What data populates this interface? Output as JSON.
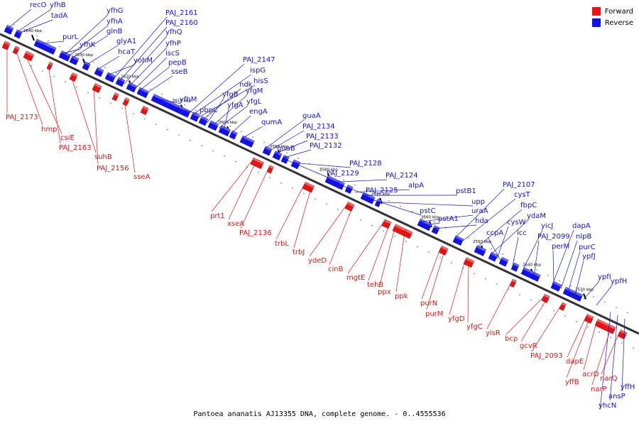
{
  "caption": "Pantoea ananatis AJ13355 DNA, complete genome. - 0..4555536",
  "legend": [
    {
      "label": "Forward",
      "color": "#ee1111"
    },
    {
      "label": "Reverse",
      "color": "#1111ee"
    }
  ],
  "colors": {
    "forward": "#ee1111",
    "reverse": "#1111ee",
    "backbone": "#333333"
  },
  "ticks": [
    "2640 kbp",
    "2630 kbp",
    "2620 kbp",
    "2610 kbp",
    "2600 kbp",
    "2590 kbp",
    "2580 kbp",
    "2570 kbp",
    "2560 kbp",
    "2550 kbp",
    "2540 kbp",
    "2530 kbp"
  ],
  "reverse_genes": [
    "recO",
    "yfhB",
    "tadA",
    "purL",
    "yfhG",
    "yfhA",
    "glnB",
    "yfhK",
    "glyA1",
    "hcaT",
    "yohM",
    "PAJ_2161",
    "PAJ_2160",
    "yfhQ",
    "yfhP",
    "iscS",
    "pepB",
    "sseB",
    "yfhM",
    "pbpC",
    "PAJ_2147",
    "ispG",
    "hisS",
    "ndk",
    "yfgB",
    "yfgM",
    "yfgL",
    "yfgA",
    "engA",
    "qumA",
    "guaA",
    "PAJ_2134",
    "PAJ_2133",
    "PAJ_2132",
    "guaB",
    "PAJ_2128",
    "PAJ_2129",
    "PAJ_2124",
    "PAJ_2125",
    "alpA",
    "pstB1",
    "upp",
    "pstC",
    "uraA",
    "pstA1",
    "hda",
    "PAJ_2107",
    "cysT",
    "fbpC",
    "ydaM",
    "cysW",
    "ccpA",
    "icc",
    "yicJ",
    "PAJ_2099",
    "dapA",
    "nlpB",
    "purC",
    "perM",
    "ypfJ",
    "ypfI",
    "ypfH",
    "yffH",
    "ansP",
    "yhcN"
  ],
  "forward_genes": [
    "PAJ_2173",
    "hmp",
    "csiE",
    "PAJ_2163",
    "suhB",
    "PAJ_2156",
    "sseA",
    "prt1",
    "xseA",
    "PAJ_2136",
    "trbL",
    "trbJ",
    "ydeD",
    "cinB",
    "mgtE",
    "tehB",
    "ppx",
    "ppk",
    "purN",
    "purM",
    "yfgD",
    "yfgC",
    "yisR",
    "bcp",
    "gcvR",
    "PAJ_2093",
    "dapE",
    "acrD",
    "yffB",
    "narQ",
    "narP"
  ]
}
